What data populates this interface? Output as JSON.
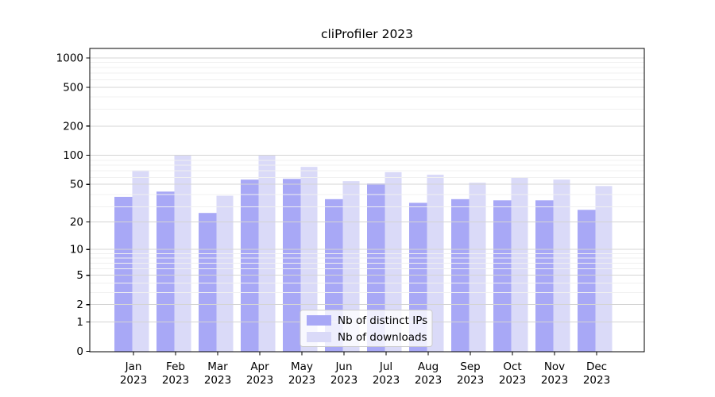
{
  "chart_data": {
    "type": "bar",
    "title": "cliProfiler 2023",
    "categories": [
      "Jan",
      "Feb",
      "Mar",
      "Apr",
      "May",
      "Jun",
      "Jul",
      "Aug",
      "Sep",
      "Oct",
      "Nov",
      "Dec"
    ],
    "x_year_label": "2023",
    "series": [
      {
        "name": "Nb of distinct IPs",
        "color": "#a8a8f6",
        "values": [
          37,
          42,
          25,
          56,
          57,
          35,
          51,
          32,
          35,
          34,
          34,
          27
        ]
      },
      {
        "name": "Nb of downloads",
        "color": "#dadaf8",
        "values": [
          70,
          100,
          38,
          100,
          76,
          54,
          67,
          63,
          52,
          59,
          56,
          48
        ]
      }
    ],
    "yscale": "log1p",
    "yticks": [
      0,
      1,
      2,
      5,
      10,
      20,
      50,
      100,
      200,
      500,
      1000
    ],
    "ylim": [
      0,
      1250
    ],
    "grid": true,
    "legend_position": "lower center",
    "colors": {
      "major_grid": "#d4d4d4",
      "minor_grid": "#f0f0f0",
      "spine": "#000000",
      "legend_border": "#cccccc",
      "legend_bg": "rgba(255,255,255,0.8)"
    }
  }
}
